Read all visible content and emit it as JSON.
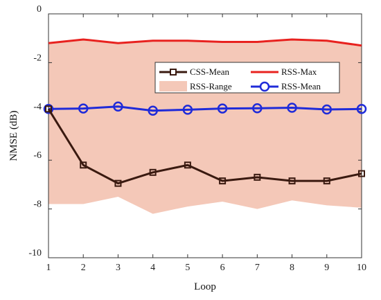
{
  "chart_data": {
    "type": "line",
    "xlabel": "Loop",
    "ylabel": "NMSE (dB)",
    "xlim": [
      1,
      10
    ],
    "ylim": [
      -10,
      0
    ],
    "xticks": [
      1,
      2,
      3,
      4,
      5,
      6,
      7,
      8,
      9,
      10
    ],
    "yticks": [
      0,
      -2,
      -4,
      -6,
      -8,
      -10
    ],
    "grid": false,
    "legend_position": "top-center",
    "x": [
      1,
      2,
      3,
      4,
      5,
      6,
      7,
      8,
      9,
      10
    ],
    "range": {
      "name": "RSS-Range",
      "color": "#f4c8b8",
      "lower": [
        -7.8,
        -7.8,
        -7.5,
        -8.2,
        -7.9,
        -7.7,
        -8.0,
        -7.65,
        -7.85,
        -7.95
      ],
      "upper": [
        -1.2,
        -1.05,
        -1.2,
        -1.1,
        -1.1,
        -1.15,
        -1.15,
        -1.05,
        -1.1,
        -1.3
      ]
    },
    "series": [
      {
        "name": "CSS-Mean",
        "color": "#3a1a10",
        "marker": "square",
        "values": [
          -3.9,
          -6.2,
          -6.95,
          -6.5,
          -6.2,
          -6.85,
          -6.7,
          -6.85,
          -6.85,
          -6.55
        ]
      },
      {
        "name": "RSS-Max",
        "color": "#e8221f",
        "marker": "none",
        "values": [
          -1.2,
          -1.05,
          -1.2,
          -1.1,
          -1.1,
          -1.15,
          -1.15,
          -1.05,
          -1.1,
          -1.3
        ]
      },
      {
        "name": "RSS-Mean",
        "color": "#1f2bd9",
        "marker": "circle",
        "values": [
          -3.9,
          -3.88,
          -3.8,
          -3.97,
          -3.93,
          -3.88,
          -3.87,
          -3.85,
          -3.92,
          -3.9
        ]
      }
    ]
  }
}
